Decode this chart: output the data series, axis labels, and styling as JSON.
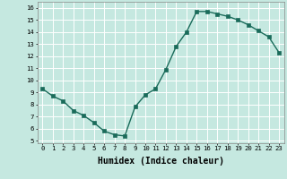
{
  "x": [
    0,
    1,
    2,
    3,
    4,
    5,
    6,
    7,
    8,
    9,
    10,
    11,
    12,
    13,
    14,
    15,
    16,
    17,
    18,
    19,
    20,
    21,
    22,
    23
  ],
  "y": [
    9.3,
    8.7,
    8.3,
    7.5,
    7.1,
    6.5,
    5.8,
    5.5,
    5.4,
    7.8,
    8.8,
    9.3,
    10.9,
    12.8,
    14.0,
    15.7,
    15.7,
    15.5,
    15.3,
    15.0,
    14.6,
    14.1,
    13.6,
    12.3
  ],
  "line_color": "#1a6b5a",
  "marker": "s",
  "markersize": 2.2,
  "linewidth": 1.0,
  "xlabel": "Humidex (Indice chaleur)",
  "xlim": [
    -0.5,
    23.5
  ],
  "ylim": [
    4.8,
    16.5
  ],
  "yticks": [
    5,
    6,
    7,
    8,
    9,
    10,
    11,
    12,
    13,
    14,
    15,
    16
  ],
  "xticks": [
    0,
    1,
    2,
    3,
    4,
    5,
    6,
    7,
    8,
    9,
    10,
    11,
    12,
    13,
    14,
    15,
    16,
    17,
    18,
    19,
    20,
    21,
    22,
    23
  ],
  "bg_color": "#c5e8e0",
  "grid_color": "#ffffff",
  "tick_fontsize": 5.2,
  "xlabel_fontsize": 7.0,
  "xlabel_fontweight": "bold"
}
